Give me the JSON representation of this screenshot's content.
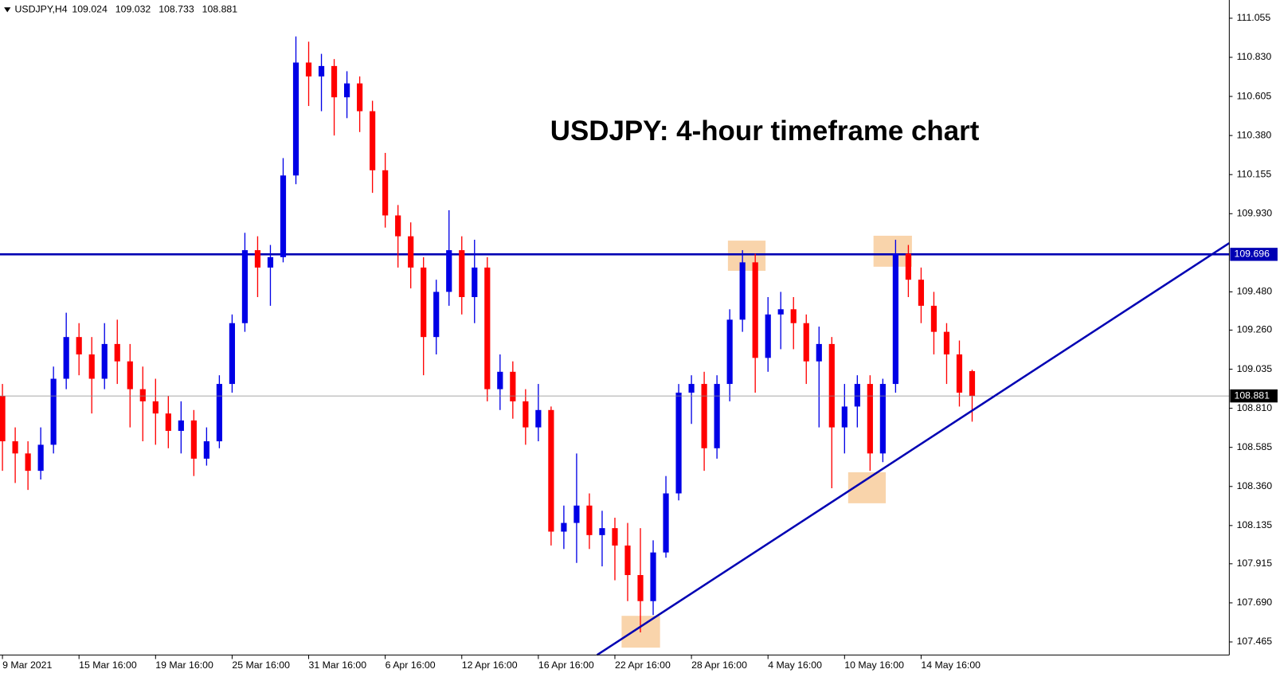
{
  "chart_data": {
    "type": "candlestick",
    "symbol": "USDJPY,H4",
    "title": "USDJPY: 4-hour timeframe chart",
    "categories": [
      "9 Mar 2021",
      null,
      null,
      null,
      null,
      null,
      "15 Mar 16:00",
      null,
      null,
      null,
      null,
      null,
      "19 Mar 16:00",
      null,
      null,
      null,
      null,
      null,
      "25 Mar 16:00",
      null,
      null,
      null,
      null,
      null,
      "31 Mar 16:00",
      null,
      null,
      null,
      null,
      null,
      "6 Apr 16:00",
      null,
      null,
      null,
      null,
      null,
      "12 Apr 16:00",
      null,
      null,
      null,
      null,
      null,
      "16 Apr 16:00",
      null,
      null,
      null,
      null,
      null,
      "22 Apr 16:00",
      null,
      null,
      null,
      null,
      null,
      "28 Apr 16:00",
      null,
      null,
      null,
      null,
      null,
      "4 May 16:00",
      null,
      null,
      null,
      null,
      null,
      "10 May 16:00",
      null,
      null,
      null,
      null,
      null,
      "14 May 16:00",
      null,
      null,
      null,
      null
    ],
    "open": [
      108.88,
      108.62,
      108.55,
      108.45,
      108.6,
      108.98,
      109.22,
      109.12,
      108.98,
      109.18,
      109.08,
      108.92,
      108.85,
      108.78,
      108.68,
      108.74,
      108.52,
      108.62,
      108.95,
      109.3,
      109.72,
      109.62,
      109.68,
      110.15,
      110.8,
      110.72,
      110.78,
      110.6,
      110.68,
      110.52,
      110.18,
      109.92,
      109.8,
      109.62,
      109.22,
      109.48,
      109.72,
      109.45,
      109.62,
      108.92,
      109.02,
      108.85,
      108.7,
      108.8,
      108.1,
      108.15,
      108.25,
      108.08,
      108.12,
      108.02,
      107.85,
      107.7,
      107.98,
      108.32,
      108.9,
      108.95,
      108.58,
      108.95,
      109.32,
      109.65,
      109.1,
      109.35,
      109.38,
      109.3,
      109.08,
      109.18,
      108.7,
      108.82,
      108.95,
      108.55,
      108.95,
      109.7,
      109.55,
      109.4,
      109.25,
      109.12,
      109.024
    ],
    "high": [
      108.95,
      108.7,
      108.62,
      108.7,
      109.05,
      109.36,
      109.3,
      109.22,
      109.3,
      109.32,
      109.18,
      109.05,
      108.98,
      108.88,
      108.85,
      108.8,
      108.7,
      109.0,
      109.35,
      109.82,
      109.8,
      109.75,
      110.25,
      110.95,
      110.92,
      110.85,
      110.82,
      110.75,
      110.72,
      110.58,
      110.28,
      109.98,
      109.88,
      109.68,
      109.55,
      109.95,
      109.8,
      109.78,
      109.68,
      109.12,
      109.08,
      108.92,
      108.95,
      108.82,
      108.25,
      108.55,
      108.32,
      108.22,
      108.18,
      108.15,
      108.12,
      108.05,
      108.42,
      108.95,
      109.0,
      109.02,
      109.0,
      109.38,
      109.72,
      109.7,
      109.45,
      109.48,
      109.45,
      109.35,
      109.28,
      109.22,
      108.95,
      109.0,
      109.0,
      108.98,
      109.78,
      109.75,
      109.62,
      109.48,
      109.3,
      109.2,
      109.032
    ],
    "low": [
      108.45,
      108.38,
      108.34,
      108.4,
      108.55,
      108.92,
      109.0,
      108.78,
      108.92,
      108.95,
      108.7,
      108.62,
      108.6,
      108.58,
      108.55,
      108.42,
      108.48,
      108.58,
      108.9,
      109.25,
      109.45,
      109.4,
      109.65,
      110.1,
      110.55,
      110.52,
      110.38,
      110.48,
      110.4,
      110.05,
      109.85,
      109.62,
      109.5,
      109.0,
      109.12,
      109.4,
      109.35,
      109.3,
      108.85,
      108.8,
      108.75,
      108.6,
      108.62,
      108.02,
      108.0,
      107.92,
      108.0,
      107.9,
      107.82,
      107.7,
      107.52,
      107.62,
      107.95,
      108.28,
      108.72,
      108.45,
      108.52,
      108.85,
      109.25,
      108.9,
      109.02,
      109.15,
      109.15,
      108.95,
      108.7,
      108.35,
      108.55,
      108.7,
      108.45,
      108.5,
      108.9,
      109.45,
      109.3,
      109.12,
      108.95,
      108.82,
      108.733
    ],
    "close": [
      108.62,
      108.55,
      108.45,
      108.6,
      108.98,
      109.22,
      109.12,
      108.98,
      109.18,
      109.08,
      108.92,
      108.85,
      108.78,
      108.68,
      108.74,
      108.52,
      108.62,
      108.95,
      109.3,
      109.72,
      109.62,
      109.68,
      110.15,
      110.8,
      110.72,
      110.78,
      110.6,
      110.68,
      110.52,
      110.18,
      109.92,
      109.8,
      109.62,
      109.22,
      109.48,
      109.72,
      109.45,
      109.62,
      108.92,
      109.02,
      108.85,
      108.7,
      108.8,
      108.1,
      108.15,
      108.25,
      108.08,
      108.12,
      108.02,
      107.85,
      107.7,
      107.98,
      108.32,
      108.9,
      108.95,
      108.58,
      108.95,
      109.32,
      109.65,
      109.1,
      109.35,
      109.38,
      109.3,
      109.08,
      109.18,
      108.7,
      108.82,
      108.95,
      108.55,
      108.95,
      109.7,
      109.55,
      109.4,
      109.25,
      109.12,
      108.9,
      108.881
    ],
    "up_color": "#0000e6",
    "down_color": "#ff0000",
    "levels": [
      {
        "value": 109.696,
        "color": "#0000b3"
      }
    ],
    "ylim": [
      107.39,
      111.16
    ],
    "yticks": [
      {
        "value": 107.465,
        "label": "107.465"
      },
      {
        "value": 107.69,
        "label": "107.690"
      },
      {
        "value": 107.915,
        "label": "107.915"
      },
      {
        "value": 108.135,
        "label": "108.135"
      },
      {
        "value": 108.36,
        "label": "108.360"
      },
      {
        "value": 108.585,
        "label": "108.585"
      },
      {
        "value": 108.81,
        "label": "108.810"
      },
      {
        "value": 109.035,
        "label": "109.035"
      },
      {
        "value": 109.26,
        "label": "109.260"
      },
      {
        "value": 109.48,
        "label": "109.480"
      },
      {
        "value": 109.93,
        "label": "109.930"
      },
      {
        "value": 110.155,
        "label": "110.155"
      },
      {
        "value": 110.38,
        "label": "110.380"
      },
      {
        "value": 110.605,
        "label": "110.605"
      },
      {
        "value": 110.83,
        "label": "110.830"
      },
      {
        "value": 111.055,
        "label": "111.055"
      }
    ]
  }
}
